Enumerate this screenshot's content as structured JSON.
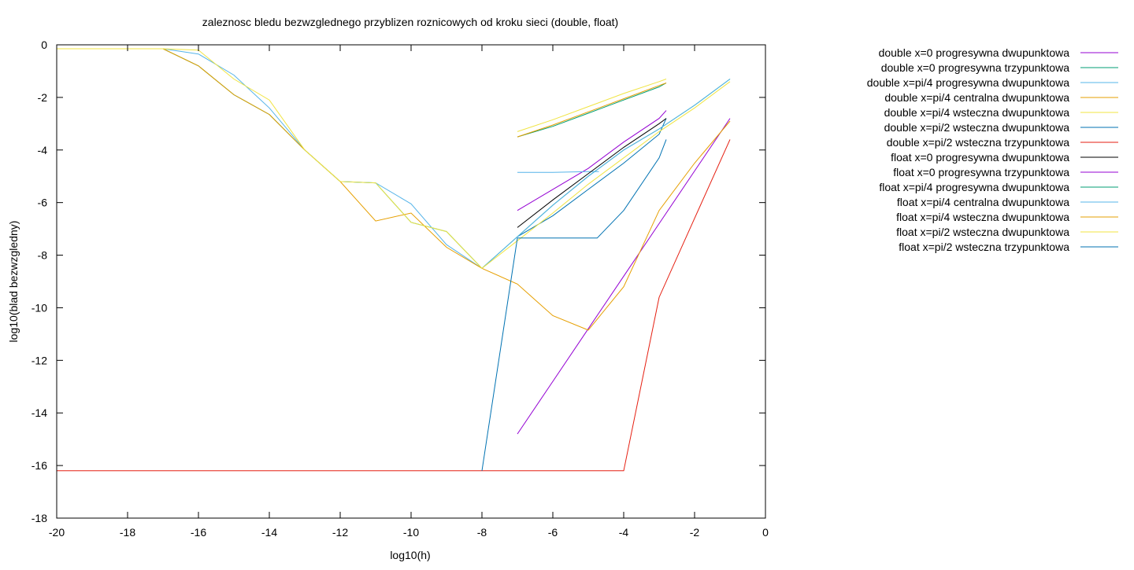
{
  "chart_data": {
    "type": "line",
    "title": "zaleznosc bledu bezwzglednego przyblizen roznicowych od kroku sieci (double, float)",
    "xlabel": "log10(h)",
    "ylabel": "log10(blad bezwzgledny)",
    "xlim": [
      -20,
      0
    ],
    "ylim": [
      -18,
      0
    ],
    "xticks": [
      -20,
      -18,
      -16,
      -14,
      -12,
      -10,
      -8,
      -6,
      -4,
      -2,
      0
    ],
    "yticks": [
      0,
      -2,
      -4,
      -6,
      -8,
      -10,
      -12,
      -14,
      -16,
      -18
    ],
    "grid": false,
    "legend_position": "right",
    "series": [
      {
        "name": "double x=0 progresywna dwupunktowa",
        "color": "#9400d3",
        "x": [
          -7,
          -6,
          -5,
          -4,
          -3,
          -2.8
        ],
        "y": [
          -6.3,
          -5.5,
          -4.7,
          -3.7,
          -2.8,
          -2.5
        ]
      },
      {
        "name": "double x=0 progresywna trzypunktowa",
        "color": "#009e73",
        "x": [
          -7,
          -6,
          -5,
          -4,
          -3,
          -2.8
        ],
        "y": [
          -3.5,
          -3.1,
          -2.6,
          -2.1,
          -1.6,
          -1.45
        ]
      },
      {
        "name": "double x=pi/4 progresywna dwupunktowa",
        "color": "#56b4e9",
        "x": [
          -7,
          -6,
          -5,
          -4.7
        ],
        "y": [
          -4.85,
          -4.85,
          -4.82,
          -4.82
        ]
      },
      {
        "name": "double x=pi/4 centralna dwupunktowa",
        "color": "#e69f00",
        "x": [
          -7,
          -6,
          -5,
          -4,
          -3,
          -2.8
        ],
        "y": [
          -3.5,
          -3.05,
          -2.55,
          -2.05,
          -1.55,
          -1.45
        ]
      },
      {
        "name": "double x=pi/4 wsteczna dwupunktowa",
        "color": "#f0e442",
        "x": [
          -7,
          -6,
          -5,
          -4,
          -3,
          -2.8
        ],
        "y": [
          -3.3,
          -2.85,
          -2.35,
          -1.85,
          -1.4,
          -1.3
        ]
      },
      {
        "name": "double x=pi/2 wsteczna dwupunktowa",
        "color": "#0072b2",
        "x": [
          -7,
          -6,
          -5,
          -4,
          -3,
          -2.8
        ],
        "y": [
          -7.3,
          -6.5,
          -5.5,
          -4.5,
          -3.4,
          -2.8
        ]
      },
      {
        "name": "double x=pi/2 wsteczna trzypunktowa",
        "color": "#e51e10",
        "x": [
          -20,
          -19,
          -18,
          -17,
          -16,
          -15,
          -14,
          -13,
          -12,
          -11,
          -10,
          -9,
          -8,
          -7,
          -6,
          -5,
          -4,
          -3,
          -2,
          -1
        ],
        "y": [
          -16.2,
          -16.2,
          -16.2,
          -16.2,
          -16.2,
          -16.2,
          -16.2,
          -16.2,
          -16.2,
          -16.2,
          -16.2,
          -16.2,
          -16.2,
          -16.2,
          -16.2,
          -16.2,
          -16.2,
          -9.6,
          -6.6,
          -3.6
        ]
      },
      {
        "name": "float x=0 progresywna dwupunktowa",
        "color": "#000000",
        "x": [
          -7,
          -6,
          -5,
          -4,
          -3,
          -2.8
        ],
        "y": [
          -6.95,
          -5.9,
          -4.9,
          -3.9,
          -3.0,
          -2.8
        ]
      },
      {
        "name": "float x=0 progresywna trzypunktowa",
        "color": "#9400d3",
        "x": [
          -7,
          -6,
          -5,
          -4,
          -3,
          -2,
          -1
        ],
        "y": [
          -14.8,
          -12.8,
          -10.8,
          -8.8,
          -6.8,
          -4.8,
          -2.8
        ]
      },
      {
        "name": "float x=pi/4 progresywna dwupunktowa",
        "color": "#009e73",
        "x": [
          -20,
          -19,
          -18,
          -17,
          -16,
          -15,
          -14,
          -13,
          -12,
          -11,
          -10,
          -9,
          -8,
          -7,
          -6,
          -5,
          -4,
          -3,
          -2,
          -1
        ],
        "y": [
          -0.15,
          -0.15,
          -0.15,
          -0.15,
          -0.8,
          -1.9,
          -2.65,
          -4.0,
          -5.2,
          -5.25,
          -6.75,
          -7.1,
          -8.5,
          -7.3,
          -6.1,
          -5.0,
          -4.0,
          -3.2,
          -2.3,
          -1.3
        ]
      },
      {
        "name": "float x=pi/4 centralna dwupunktowa",
        "color": "#56b4e9",
        "x": [
          -20,
          -19,
          -18,
          -17,
          -16,
          -15,
          -14,
          -13,
          -12,
          -11,
          -10,
          -9,
          -8,
          -7,
          -6,
          -5,
          -4,
          -3,
          -2,
          -1
        ],
        "y": [
          -0.15,
          -0.15,
          -0.15,
          -0.15,
          -0.35,
          -1.15,
          -2.4,
          -4.0,
          -5.2,
          -5.25,
          -6.05,
          -7.6,
          -8.5,
          -7.3,
          -6.1,
          -5.0,
          -4.0,
          -3.2,
          -2.3,
          -1.3
        ]
      },
      {
        "name": "float x=pi/4 wsteczna dwupunktowa",
        "color": "#e69f00",
        "x": [
          -20,
          -19,
          -18,
          -17,
          -16,
          -15,
          -14,
          -13,
          -12,
          -11,
          -10,
          -9,
          -8,
          -7,
          -6,
          -5,
          -4,
          -3,
          -2,
          -1
        ],
        "y": [
          -0.15,
          -0.15,
          -0.15,
          -0.15,
          -0.8,
          -1.9,
          -2.65,
          -4.0,
          -5.2,
          -6.7,
          -6.4,
          -7.7,
          -8.5,
          -9.1,
          -10.3,
          -10.85,
          -9.2,
          -6.3,
          -4.5,
          -2.9
        ]
      },
      {
        "name": "float x=pi/2 wsteczna dwupunktowa",
        "color": "#f0e442",
        "x": [
          -20,
          -19,
          -18,
          -17,
          -16,
          -15,
          -14,
          -13,
          -12,
          -11,
          -10,
          -9,
          -8,
          -7,
          -6,
          -5,
          -4,
          -3,
          -2,
          -1
        ],
        "y": [
          -0.15,
          -0.15,
          -0.15,
          -0.15,
          -0.2,
          -1.3,
          -2.1,
          -4.0,
          -5.2,
          -5.25,
          -6.75,
          -7.1,
          -8.5,
          -7.45,
          -6.4,
          -5.3,
          -4.3,
          -3.3,
          -2.4,
          -1.4
        ]
      },
      {
        "name": "float x=pi/2 wsteczna trzypunktowa",
        "color": "#0072b2",
        "x": [
          -8,
          -7,
          -6,
          -5,
          -4.75,
          -4,
          -3,
          -2.8
        ],
        "y": [
          -16.2,
          -7.35,
          -7.35,
          -7.35,
          -7.35,
          -6.3,
          -4.3,
          -3.6
        ]
      }
    ]
  }
}
